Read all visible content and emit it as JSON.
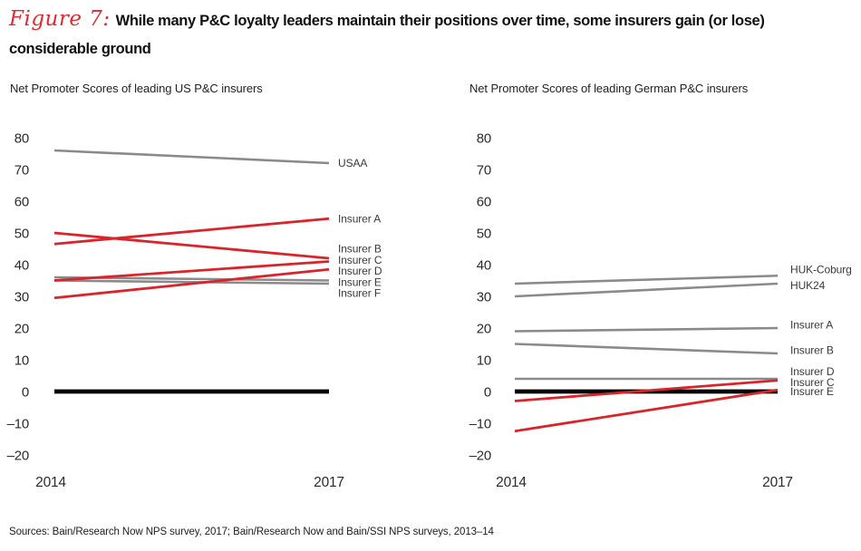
{
  "page": {
    "figure_label": "Figure 7:",
    "title_line1": "While many P&C loyalty leaders maintain their positions over time, some insurers gain (or lose)",
    "title_line2": "considerable ground",
    "sources": "Sources: Bain/Research Now NPS survey, 2017; Bain/Research Now and Bain/SSI NPS surveys, 2013–14"
  },
  "colors": {
    "red": "#d8242a",
    "gray": "#8a8a8a",
    "black": "#000000",
    "figure_label_red": "#de2a33",
    "axis_text": "#2b2b2b",
    "series_label_text": "#3a3a3a"
  },
  "chart_data": [
    {
      "type": "line",
      "title": "Net Promoter Scores of leading US P&C insurers",
      "x": [
        "2014",
        "2017"
      ],
      "ylim": [
        -20,
        80
      ],
      "ytick_step": 10,
      "grid": false,
      "legend_position": "right-of-line-labels",
      "series": [
        {
          "name": "USAA",
          "values": [
            76,
            72
          ],
          "color": "gray",
          "label_y": 72
        },
        {
          "name": "Insurer A",
          "values": [
            46.5,
            54.5
          ],
          "color": "red",
          "label_y": 54.5
        },
        {
          "name": "Insurer B",
          "values": [
            50,
            42
          ],
          "color": "red",
          "label_y": 45
        },
        {
          "name": "Insurer C",
          "values": [
            35,
            41
          ],
          "color": "red",
          "label_y": 41.5
        },
        {
          "name": "Insurer D",
          "values": [
            29.5,
            38.5
          ],
          "color": "red",
          "label_y": 38
        },
        {
          "name": "Insurer E",
          "values": [
            36,
            35
          ],
          "color": "gray",
          "label_y": 34.5
        },
        {
          "name": "Insurer F",
          "values": [
            35,
            34
          ],
          "color": "gray",
          "label_y": 31
        },
        {
          "name": "",
          "values": [
            0,
            0
          ],
          "color": "black",
          "zero_line": true,
          "label_y": null
        }
      ]
    },
    {
      "type": "line",
      "title": "Net Promoter Scores of leading German P&C insurers",
      "x": [
        "2014",
        "2017"
      ],
      "ylim": [
        -20,
        80
      ],
      "ytick_step": 10,
      "grid": false,
      "legend_position": "right-of-line-labels",
      "series": [
        {
          "name": "HUK-Coburg",
          "values": [
            34,
            36.5
          ],
          "color": "gray",
          "label_y": 38.5
        },
        {
          "name": "HUK24",
          "values": [
            30,
            34
          ],
          "color": "gray",
          "label_y": 33.5
        },
        {
          "name": "Insurer A",
          "values": [
            19,
            20
          ],
          "color": "gray",
          "label_y": 21
        },
        {
          "name": "Insurer B",
          "values": [
            15,
            12
          ],
          "color": "gray",
          "label_y": 13
        },
        {
          "name": "Insurer D",
          "values": [
            4,
            4
          ],
          "color": "gray",
          "label_y": 6.3
        },
        {
          "name": "Insurer C",
          "values": [
            -3,
            3.5
          ],
          "color": "red",
          "label_y": 2.9
        },
        {
          "name": "Insurer E",
          "values": [
            -12.5,
            0.5
          ],
          "color": "red",
          "label_y": 0
        },
        {
          "name": "",
          "values": [
            0,
            0
          ],
          "color": "black",
          "zero_line": true,
          "label_y": null
        }
      ]
    }
  ]
}
